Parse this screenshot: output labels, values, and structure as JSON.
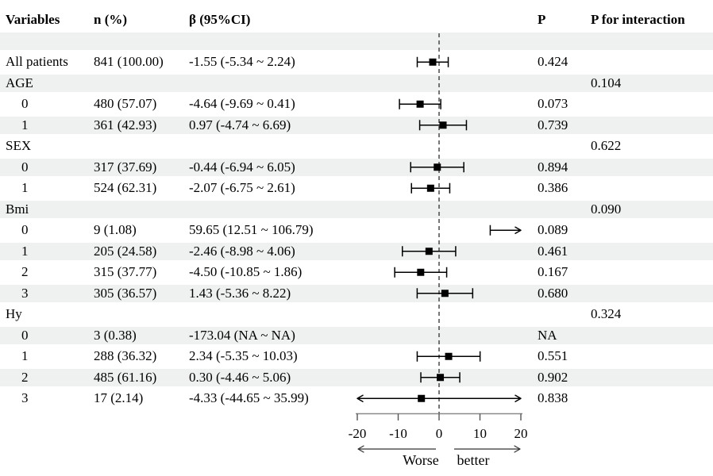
{
  "header": {
    "variables": "Variables",
    "n": "n (%)",
    "beta": "β (95%CI)",
    "p": "P",
    "p_interaction": "P for interaction"
  },
  "rows": [
    {
      "type": "spacer"
    },
    {
      "type": "data",
      "label": "All patients",
      "indent": 0,
      "n": "841 (100.00)",
      "beta": "-1.55 (-5.34 ~ 2.24)",
      "p": "0.424"
    },
    {
      "type": "group",
      "label": "AGE",
      "indent": 0,
      "p_interaction": "0.104"
    },
    {
      "type": "data",
      "label": "0",
      "indent": 1,
      "n": "480 (57.07)",
      "beta": "-4.64 (-9.69 ~ 0.41)",
      "p": "0.073"
    },
    {
      "type": "data",
      "label": "1",
      "indent": 1,
      "n": "361 (42.93)",
      "beta": "0.97 (-4.74 ~ 6.69)",
      "p": "0.739"
    },
    {
      "type": "group",
      "label": "SEX",
      "indent": 0,
      "p_interaction": "0.622"
    },
    {
      "type": "data",
      "label": "0",
      "indent": 1,
      "n": "317 (37.69)",
      "beta": "-0.44 (-6.94 ~ 6.05)",
      "p": "0.894"
    },
    {
      "type": "data",
      "label": "1",
      "indent": 1,
      "n": "524 (62.31)",
      "beta": "-2.07 (-6.75 ~ 2.61)",
      "p": "0.386"
    },
    {
      "type": "group",
      "label": "Bmi",
      "indent": 0,
      "p_interaction": "0.090"
    },
    {
      "type": "data",
      "label": "0",
      "indent": 1,
      "n": "9 (1.08)",
      "beta": "59.65 (12.51 ~ 106.79)",
      "p": "0.089"
    },
    {
      "type": "data",
      "label": "1",
      "indent": 1,
      "n": "205 (24.58)",
      "beta": "-2.46 (-8.98 ~ 4.06)",
      "p": "0.461"
    },
    {
      "type": "data",
      "label": "2",
      "indent": 1,
      "n": "315 (37.77)",
      "beta": "-4.50 (-10.85 ~ 1.86)",
      "p": "0.167"
    },
    {
      "type": "data",
      "label": "3",
      "indent": 1,
      "n": "305 (36.57)",
      "beta": "1.43 (-5.36 ~ 8.22)",
      "p": "0.680"
    },
    {
      "type": "group",
      "label": "Hy",
      "indent": 0,
      "p_interaction": "0.324"
    },
    {
      "type": "data",
      "label": "0",
      "indent": 1,
      "n": "3 (0.38)",
      "beta": "-173.04 (NA ~ NA)",
      "p": "NA"
    },
    {
      "type": "data",
      "label": "1",
      "indent": 1,
      "n": "288 (36.32)",
      "beta": "2.34 (-5.35 ~ 10.03)",
      "p": "0.551"
    },
    {
      "type": "data",
      "label": "2",
      "indent": 1,
      "n": "485 (61.16)",
      "beta": "0.30 (-4.46 ~ 5.06)",
      "p": "0.902"
    },
    {
      "type": "data",
      "label": "3",
      "indent": 1,
      "n": "17 (2.14)",
      "beta": "-4.33 (-44.65 ~ 35.99)",
      "p": "0.838"
    }
  ],
  "chart_data": {
    "type": "scatter",
    "subtype": "forest-plot",
    "title": "",
    "xlabel": "",
    "xlim": [
      -20,
      20
    ],
    "xtick_values": [
      -20,
      -10,
      0,
      10,
      20
    ],
    "xticks": [
      "-20",
      "-10",
      "0",
      "10",
      "20"
    ],
    "reference_line": 0,
    "direction_labels": {
      "left": "Worse",
      "right": "better"
    },
    "marker_color": "#000000",
    "points": [
      {
        "row": 1,
        "label": "All patients",
        "est": -1.55,
        "lo": -5.34,
        "hi": 2.24
      },
      {
        "row": 3,
        "label": "AGE 0",
        "est": -4.64,
        "lo": -9.69,
        "hi": 0.41
      },
      {
        "row": 4,
        "label": "AGE 1",
        "est": 0.97,
        "lo": -4.74,
        "hi": 6.69
      },
      {
        "row": 6,
        "label": "SEX 0",
        "est": -0.44,
        "lo": -6.94,
        "hi": 6.05
      },
      {
        "row": 7,
        "label": "SEX 1",
        "est": -2.07,
        "lo": -6.75,
        "hi": 2.61
      },
      {
        "row": 9,
        "label": "Bmi 0",
        "est": 59.65,
        "lo": 12.51,
        "hi": 106.79
      },
      {
        "row": 10,
        "label": "Bmi 1",
        "est": -2.46,
        "lo": -8.98,
        "hi": 4.06
      },
      {
        "row": 11,
        "label": "Bmi 2",
        "est": -4.5,
        "lo": -10.85,
        "hi": 1.86
      },
      {
        "row": 12,
        "label": "Bmi 3",
        "est": 1.43,
        "lo": -5.36,
        "hi": 8.22
      },
      {
        "row": 15,
        "label": "Hy 1",
        "est": 2.34,
        "lo": -5.35,
        "hi": 10.03
      },
      {
        "row": 16,
        "label": "Hy 2",
        "est": 0.3,
        "lo": -4.46,
        "hi": 5.06
      },
      {
        "row": 17,
        "label": "Hy 3",
        "est": -4.33,
        "lo": -44.65,
        "hi": 35.99
      }
    ]
  }
}
